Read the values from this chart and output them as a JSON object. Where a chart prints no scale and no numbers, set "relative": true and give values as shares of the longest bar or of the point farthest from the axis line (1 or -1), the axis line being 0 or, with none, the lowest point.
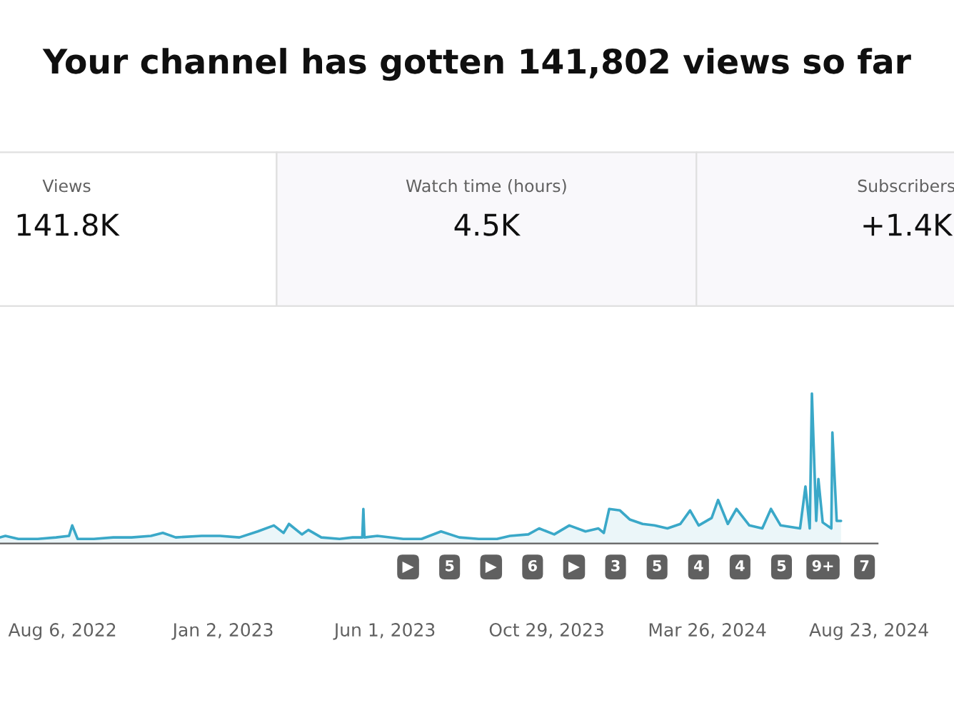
{
  "chart_data": {
    "type": "area",
    "title": "Your channel has gotten 141,802 views so far",
    "relative": true,
    "x": [
      "2022-06-09",
      "2022-06-14",
      "2022-06-26",
      "2022-07-14",
      "2022-07-31",
      "2022-08-12",
      "2022-08-15",
      "2022-08-20",
      "2022-09-04",
      "2022-09-22",
      "2022-10-09",
      "2022-10-27",
      "2022-11-07",
      "2022-11-19",
      "2022-12-13",
      "2022-12-30",
      "2023-01-17",
      "2023-02-03",
      "2023-02-18",
      "2023-02-27",
      "2023-03-04",
      "2023-03-16",
      "2023-03-22",
      "2023-04-03",
      "2023-04-20",
      "2023-05-02",
      "2023-05-11",
      "2023-05-12",
      "2023-05-13",
      "2023-05-25",
      "2023-06-18",
      "2023-07-05",
      "2023-07-23",
      "2023-08-09",
      "2023-08-27",
      "2023-09-13",
      "2023-09-25",
      "2023-10-12",
      "2023-10-22",
      "2023-11-05",
      "2023-11-19",
      "2023-12-04",
      "2023-12-16",
      "2023-12-21",
      "2023-12-26",
      "2024-01-05",
      "2024-01-14",
      "2024-01-26",
      "2024-02-06",
      "2024-02-18",
      "2024-03-01",
      "2024-03-10",
      "2024-03-18",
      "2024-03-30",
      "2024-04-05",
      "2024-04-14",
      "2024-04-22",
      "2024-05-04",
      "2024-05-16",
      "2024-05-24",
      "2024-06-02",
      "2024-06-20",
      "2024-06-25",
      "2024-06-29",
      "2024-07-01",
      "2024-07-05",
      "2024-07-07",
      "2024-07-11",
      "2024-07-19",
      "2024-07-20",
      "2024-07-24",
      "2024-07-28"
    ],
    "series": [
      {
        "color": "#3aa8c8",
        "values": [
          0.04,
          0.05,
          0.03,
          0.03,
          0.04,
          0.05,
          0.12,
          0.03,
          0.03,
          0.04,
          0.04,
          0.05,
          0.07,
          0.04,
          0.05,
          0.05,
          0.04,
          0.08,
          0.12,
          0.07,
          0.13,
          0.06,
          0.09,
          0.04,
          0.03,
          0.04,
          0.04,
          0.23,
          0.04,
          0.05,
          0.03,
          0.03,
          0.08,
          0.04,
          0.03,
          0.03,
          0.05,
          0.06,
          0.1,
          0.06,
          0.12,
          0.08,
          0.1,
          0.07,
          0.23,
          0.22,
          0.16,
          0.13,
          0.12,
          0.1,
          0.13,
          0.22,
          0.12,
          0.17,
          0.29,
          0.13,
          0.23,
          0.12,
          0.1,
          0.23,
          0.12,
          0.1,
          0.38,
          0.1,
          1.0,
          0.15,
          0.43,
          0.14,
          0.1,
          0.74,
          0.15,
          0.15
        ]
      }
    ],
    "xlim": [
      "2022-06-09",
      "2024-08-31"
    ],
    "xticks": [
      {
        "value": "2022-08-06",
        "label": "Aug 6, 2022"
      },
      {
        "value": "2023-01-02",
        "label": "Jan 2, 2023"
      },
      {
        "value": "2023-06-01",
        "label": "Jun 1, 2023"
      },
      {
        "value": "2023-10-29",
        "label": "Oct 29, 2023"
      },
      {
        "value": "2024-03-26",
        "label": "Mar 26, 2024"
      },
      {
        "value": "2024-08-23",
        "label": "Aug 23, 2024"
      }
    ],
    "annotations": [
      "Views",
      "141.8K",
      "Watch time (hours)",
      "4.5K",
      "Subscribers",
      "+1.4K",
      "▶",
      "5",
      "▶",
      "6",
      "▶",
      "3",
      "5",
      "4",
      "4",
      "5",
      "9+",
      "7"
    ]
  }
}
